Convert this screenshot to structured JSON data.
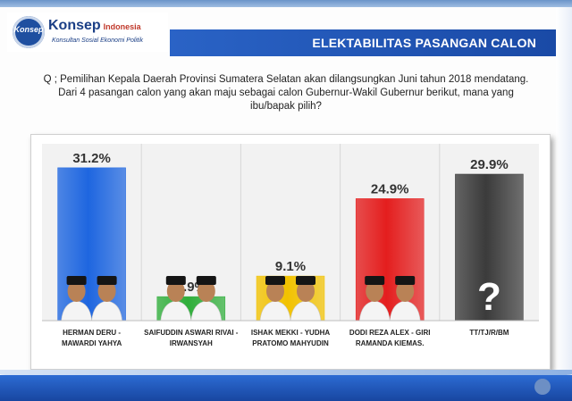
{
  "logo": {
    "badge": "Konsep",
    "name": "Konsep",
    "suffix": "Indonesia",
    "tagline": "Konsultan Sosial Ekonomi Politik"
  },
  "header": {
    "title": "ELEKTABILITAS PASANGAN CALON"
  },
  "question": {
    "line1": "Q ; Pemilihan Kepala Daerah Provinsi Sumatera Selatan akan dilangsungkan Juni tahun 2018 mendatang.",
    "line2": "Dari 4 pasangan calon yang akan maju sebagai calon Gubernur-Wakil Gubernur berikut, mana yang",
    "line3": "ibu/bapak pilih?"
  },
  "colors": {
    "bar_blue": "#1e66e0",
    "bar_green": "#2fae3a",
    "bar_yellow": "#f2c200",
    "bar_red": "#e41e1e",
    "bar_gray": "#3b3b3b",
    "accent": "#1f4fa0"
  },
  "chart_data": {
    "type": "bar",
    "categories": [
      [
        "HERMAN DERU -",
        "MAWARDI YAHYA"
      ],
      [
        "SAIFUDDIN ASWARI RIVAI -",
        "IRWANSYAH"
      ],
      [
        "ISHAK MEKKI - YUDHA",
        "PRATOMO MAHYUDIN"
      ],
      [
        "DODI REZA ALEX - GIRI",
        "RAMANDA KIEMAS."
      ],
      [
        "TT/TJ/R/BM"
      ]
    ],
    "values": [
      31.2,
      4.9,
      9.1,
      24.9,
      29.9
    ],
    "labels": [
      "31.2%",
      "4.9%",
      "9.1%",
      "24.9%",
      "29.9%"
    ],
    "bar_colors": [
      "#1e66e0",
      "#2fae3a",
      "#f2c200",
      "#e41e1e",
      "#3b3b3b"
    ],
    "icons": [
      "candidate-photo",
      "candidate-photo",
      "candidate-photo",
      "candidate-photo",
      "question-mark-icon"
    ],
    "ylim": [
      0,
      35
    ],
    "grid": false,
    "legend": "none"
  }
}
